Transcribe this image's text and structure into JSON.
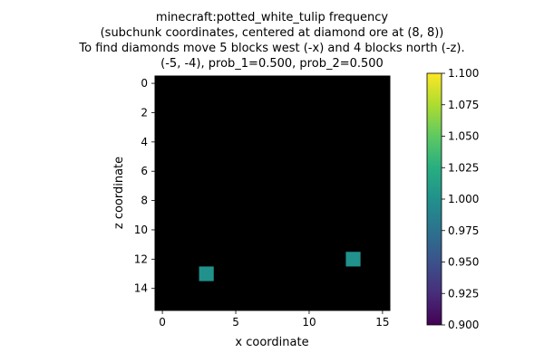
{
  "chart_data": {
    "type": "heatmap",
    "title_lines": [
      "minecraft:potted_white_tulip frequency",
      "(subchunk coordinates, centered at diamond ore at (8, 8))",
      "To find diamonds move 5 blocks west (-x) and 4 blocks north (-z).",
      "(-5, -4), prob_1=0.500, prob_2=0.500"
    ],
    "xlabel": "x coordinate",
    "ylabel": "z coordinate",
    "grid_size": 16,
    "xlim": [
      -0.5,
      15.5
    ],
    "ylim": [
      15.5,
      -0.5
    ],
    "x_ticks": [
      0,
      5,
      10,
      15
    ],
    "y_ticks": [
      0,
      2,
      4,
      6,
      8,
      10,
      12,
      14
    ],
    "background_value": 0,
    "background_color": "#000000",
    "cells": [
      {
        "x": 3,
        "z": 13,
        "value": 1.0
      },
      {
        "x": 13,
        "z": 12,
        "value": 1.0
      }
    ],
    "cell_color": "#21918c",
    "colorbar": {
      "min": 0.9,
      "max": 1.1,
      "colormap": "viridis",
      "ticks": [
        "0.900",
        "0.925",
        "0.950",
        "0.975",
        "1.000",
        "1.025",
        "1.050",
        "1.075",
        "1.100"
      ]
    },
    "grid": false
  }
}
